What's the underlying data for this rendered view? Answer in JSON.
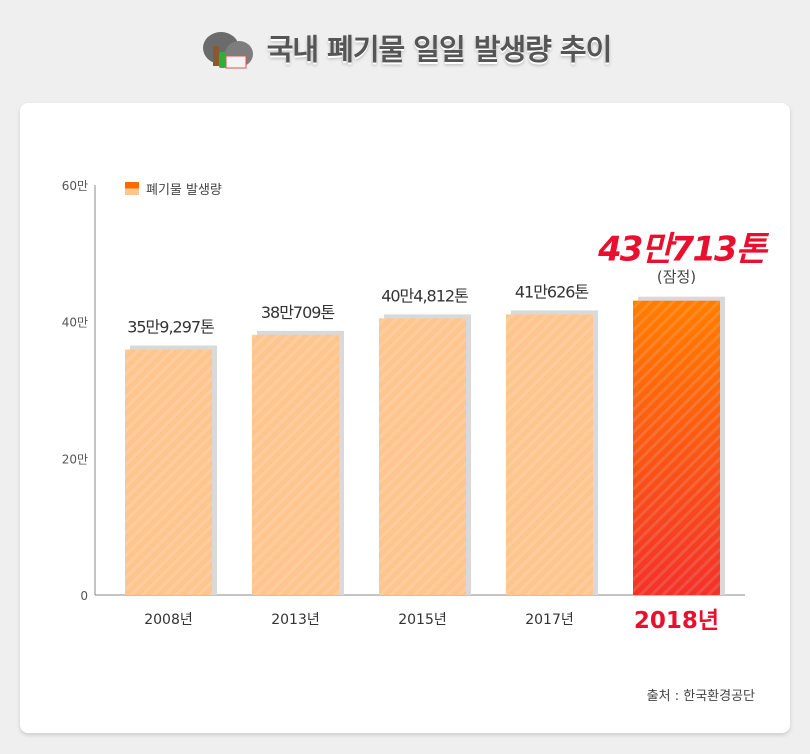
{
  "title": "국내 폐기물 일일 발생량 추이",
  "source": "출처 : 한국환경공단",
  "chart_data": {
    "type": "bar",
    "title": "국내 폐기물 일일 발생량 추이",
    "categories": [
      "2008년",
      "2013년",
      "2015년",
      "2017년",
      "2018년"
    ],
    "values": [
      359297,
      380709,
      404812,
      410626,
      430713
    ],
    "data_labels": [
      "35만9,297톤",
      "38만709톤",
      "40만4,812톤",
      "41만626톤",
      "43만713톤"
    ],
    "highlight_note": "(잠정)",
    "legend": [
      "폐기물 발생량"
    ],
    "legend_position": "top-left",
    "yticks": [
      0,
      200000,
      400000,
      600000
    ],
    "ytick_labels": [
      "0",
      "20만",
      "40만",
      "60만"
    ],
    "ylim": [
      0,
      600000
    ],
    "colors": {
      "normal": "#ffc58f",
      "highlight_top": "#ff7e00",
      "highlight_bottom": "#f2322a",
      "accent_text": "#e8102e"
    }
  }
}
